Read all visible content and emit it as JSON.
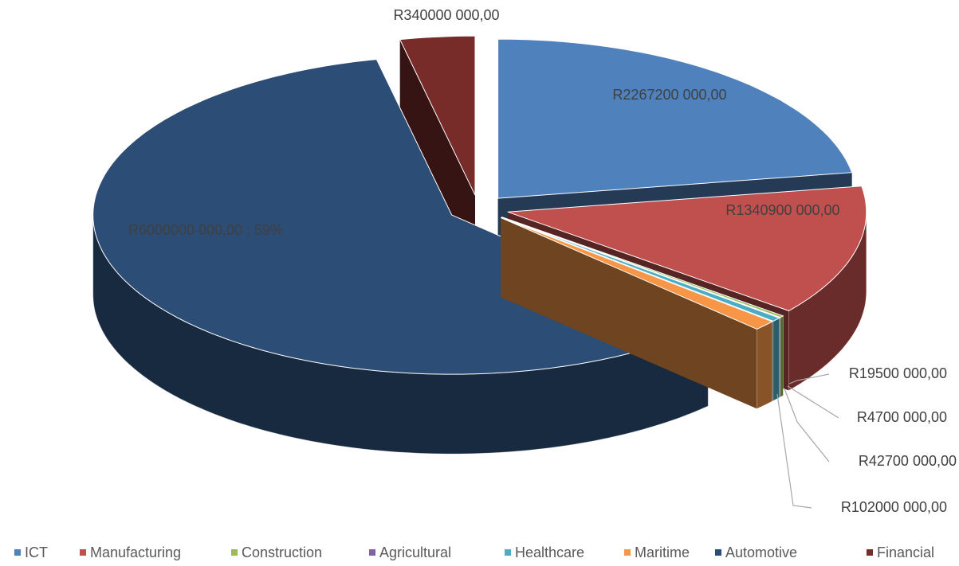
{
  "chart_data": {
    "type": "pie",
    "categories": [
      "ICT",
      "Manufacturing",
      "Construction",
      "Agricultural",
      "Healthcare",
      "Maritime",
      "Automotive",
      "Financial"
    ],
    "values": [
      2267200000,
      1340900000,
      19500000,
      4700000,
      42700000,
      102000000,
      6000000000,
      340000000
    ],
    "value_labels": [
      "R2267200 000,00",
      "R1340900 000,00",
      "R19500 000,00",
      "R4700 000,00",
      "R42700 000,00",
      "R102000 000,00",
      "R6000000 000,00 ; 59%",
      "R340000 000,00"
    ],
    "colors": [
      "#4f81bd",
      "#c0504d",
      "#9bbb59",
      "#8064a2",
      "#4bacc6",
      "#f79646",
      "#2c4d75",
      "#772c2a"
    ],
    "legend": "bottom"
  }
}
